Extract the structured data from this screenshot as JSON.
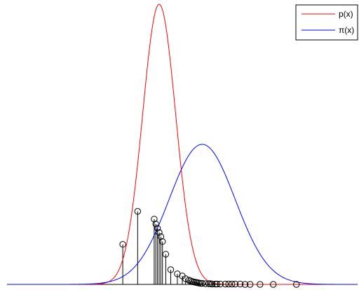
{
  "chart_data": {
    "type": "line",
    "title": "",
    "xlabel": "",
    "ylabel": "",
    "xlim": [
      -4.6,
      6.0
    ],
    "ylim": [
      0,
      0.8
    ],
    "axes_visible": false,
    "grid": false,
    "legend_position": "top-right",
    "series": [
      {
        "name": "p(x)",
        "kind": "density",
        "distribution": "normal",
        "mean": 0.0,
        "sd": 0.5,
        "color": "#ff0000"
      },
      {
        "name": "π(x)",
        "kind": "density",
        "distribution": "normal",
        "mean": 1.3,
        "sd": 1.0,
        "color": "#0000ff"
      }
    ],
    "weighted_samples": {
      "marker": "open-circle",
      "color": "#000000",
      "x": [
        -1.1,
        -0.65,
        -0.15,
        -0.1,
        -0.05,
        0.0,
        0.05,
        0.1,
        0.2,
        0.35,
        0.55,
        0.7,
        0.8,
        0.9,
        0.95,
        1.0,
        1.05,
        1.1,
        1.15,
        1.2,
        1.25,
        1.3,
        1.4,
        1.5,
        1.55,
        1.6,
        1.7,
        1.75,
        1.85,
        2.0,
        2.1,
        2.2,
        2.3,
        2.45,
        2.6,
        2.75,
        3.05,
        3.45,
        4.15
      ],
      "y": [
        0.114,
        0.208,
        0.186,
        0.172,
        0.16,
        0.148,
        0.136,
        0.122,
        0.086,
        0.042,
        0.03,
        0.024,
        0.016,
        0.012,
        0.01,
        0.008,
        0.007,
        0.006,
        0.005,
        0.004,
        0.003,
        0.003,
        0.002,
        0.002,
        0.002,
        0.001,
        0.001,
        0.001,
        0.001,
        0.001,
        0.001,
        0.001,
        0.001,
        0.001,
        0.0,
        0.0,
        0.0,
        0.0,
        0.0
      ]
    }
  }
}
